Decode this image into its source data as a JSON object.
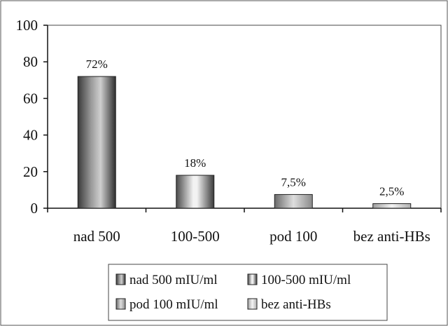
{
  "chart_data": {
    "type": "bar",
    "title": "",
    "xlabel": "",
    "ylabel": "",
    "categories": [
      "nad 500",
      "100-500",
      "pod 100",
      "bez anti-HBs"
    ],
    "values": [
      72,
      18,
      7.5,
      2.5
    ],
    "data_labels": [
      "72%",
      "18%",
      "7,5%",
      "2,5%"
    ],
    "ylim": [
      0,
      100
    ],
    "yticks": [
      "0",
      "20",
      "40",
      "60",
      "80",
      "100"
    ],
    "grid": false,
    "legend": {
      "placement": "bottom",
      "entries": [
        "nad 500 mIU/ml",
        "100-500 mIU/ml",
        "pod 100 mIU/ml",
        "bez anti-HBs"
      ]
    },
    "bar_style": "grayscale cylinder gradient"
  }
}
